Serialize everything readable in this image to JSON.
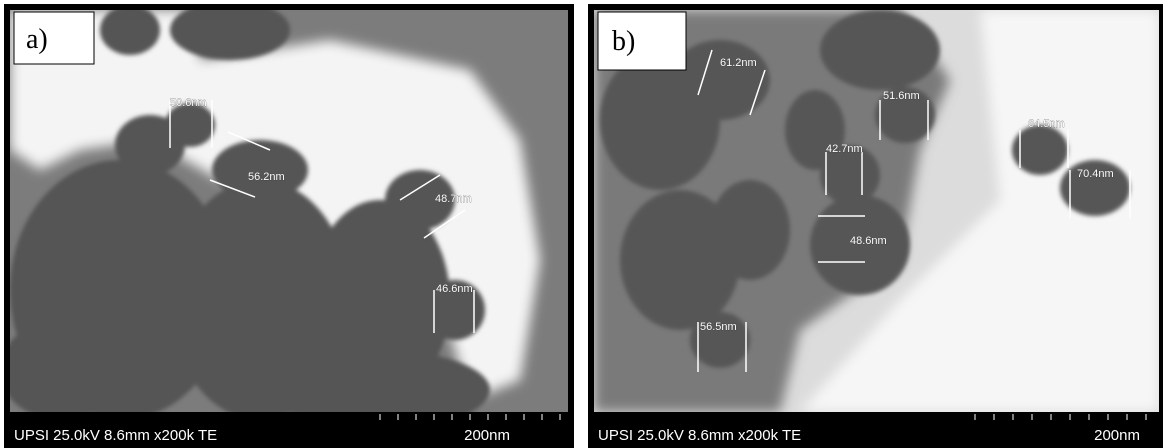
{
  "panels": [
    {
      "label": "a)",
      "measurements": [
        "50.6nm",
        "56.2nm",
        "48.7nm",
        "46.6nm"
      ],
      "footer": "UPSI 25.0kV 8.6mm x200k TE",
      "scale": "200nm"
    },
    {
      "label": "b)",
      "measurements": [
        "61.2nm",
        "51.6nm",
        "42.7nm",
        "48.6nm",
        "64.5nm",
        "70.4nm",
        "56.5nm"
      ],
      "footer": "UPSI 25.0kV 8.6mm x200k TE",
      "scale": "200nm"
    }
  ]
}
